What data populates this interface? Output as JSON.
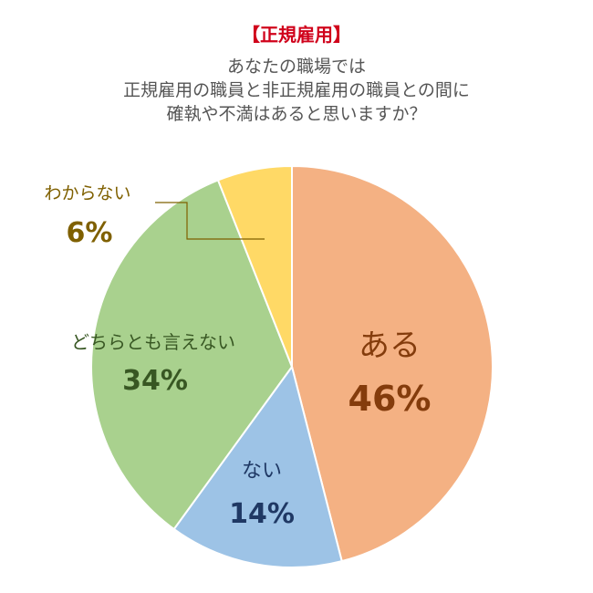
{
  "header": {
    "tag": "【正規雇用】",
    "question_lines": [
      "あなたの職場では",
      "正規雇用の職員と非正規雇用の職員との間に",
      "確執や不満はあると思いますか？"
    ]
  },
  "chart_data": {
    "type": "pie",
    "title": "【正規雇用】",
    "start": "12 o'clock",
    "direction": "clockwise",
    "slices": [
      {
        "label": "ある",
        "pct_label": "46%",
        "value": 46,
        "color": "#f4b183",
        "text_color": "#843c0c"
      },
      {
        "label": "ない",
        "pct_label": "14%",
        "value": 14,
        "color": "#9dc3e6",
        "text_color": "#1f3864"
      },
      {
        "label": "どちらとも言えない",
        "pct_label": "34%",
        "value": 34,
        "color": "#a9d18e",
        "text_color": "#385723"
      },
      {
        "label": "わからない",
        "pct_label": "6%",
        "value": 6,
        "color": "#ffd966",
        "text_color": "#7f6000"
      }
    ]
  }
}
